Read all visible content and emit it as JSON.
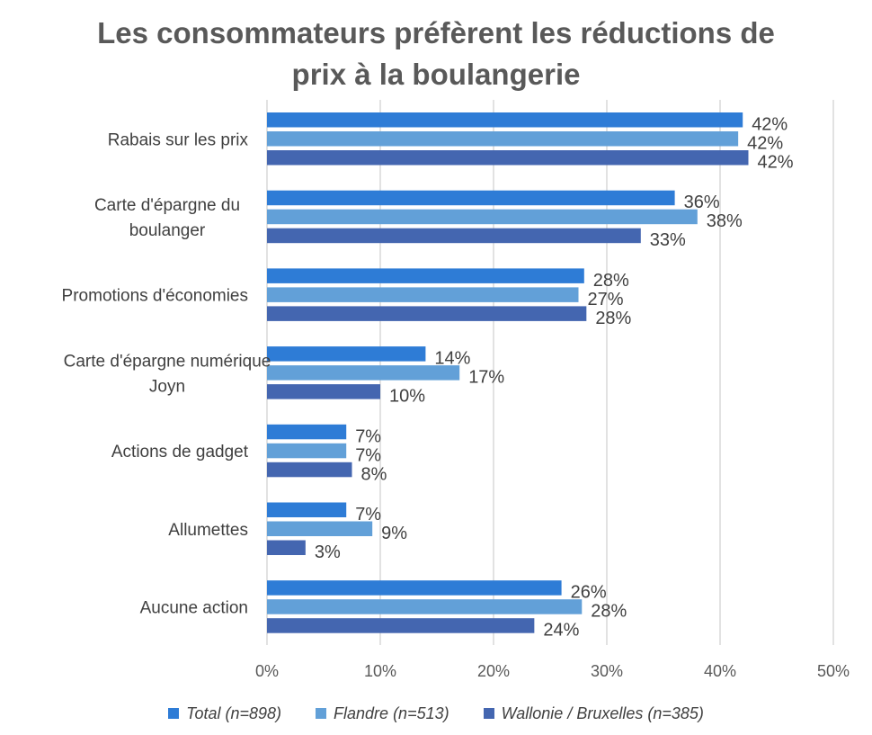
{
  "chart_data": {
    "type": "bar",
    "orientation": "horizontal",
    "title_lines": [
      "Les consommateurs préfèrent les réductions de",
      "prix à la boulangerie"
    ],
    "categories": [
      [
        "Rabais sur les prix"
      ],
      [
        "Carte d'épargne du",
        "boulanger"
      ],
      [
        "Promotions d'économies"
      ],
      [
        "Carte d'épargne numérique",
        "Joyn"
      ],
      [
        "Actions de gadget"
      ],
      [
        "Allumettes"
      ],
      [
        "Aucune action"
      ]
    ],
    "series": [
      {
        "name": "Total (n=898)",
        "color": "#2E7CD6",
        "values": [
          42,
          36,
          28,
          14,
          7,
          7,
          26
        ],
        "labels": [
          "42%",
          "36%",
          "28%",
          "14%",
          "7%",
          "7%",
          "26%"
        ]
      },
      {
        "name": "Flandre (n=513)",
        "color": "#62A0D8",
        "values": [
          41.6,
          38,
          27.5,
          17,
          7,
          9.3,
          27.8
        ],
        "labels": [
          "42%",
          "38%",
          "27%",
          "17%",
          "7%",
          "9%",
          "28%"
        ]
      },
      {
        "name": "Wallonie / Bruxelles (n=385)",
        "color": "#4466B0",
        "values": [
          42.5,
          33,
          28.2,
          10,
          7.5,
          3.4,
          23.6
        ],
        "labels": [
          "42%",
          "33%",
          "28%",
          "10%",
          "8%",
          "3%",
          "24%"
        ]
      }
    ],
    "xlim": [
      0,
      50
    ],
    "xticks": [
      0,
      10,
      20,
      30,
      40,
      50
    ],
    "xtick_labels": [
      "0%",
      "10%",
      "20%",
      "30%",
      "40%",
      "50%"
    ],
    "grid": true,
    "legend_position": "bottom"
  }
}
